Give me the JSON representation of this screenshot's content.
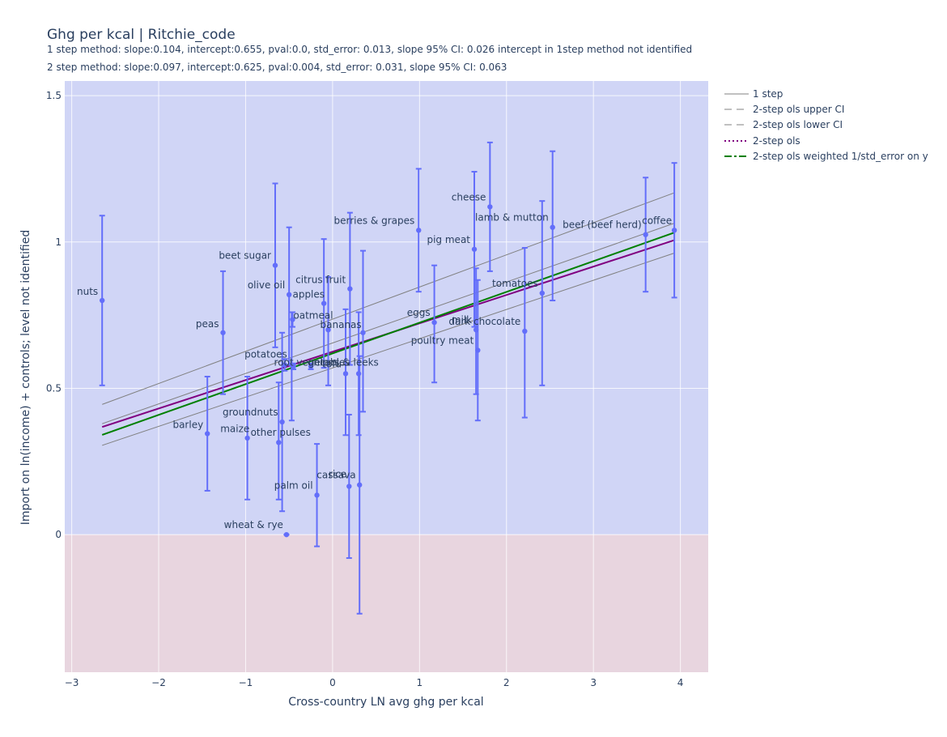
{
  "chart_data": {
    "type": "scatter",
    "title": "Ghg per kcal | Ritchie_code",
    "subtitle_lines": [
      "1 step method: slope:0.104, intercept:0.655, pval:0.0, std_error: 0.013, slope 95% CI: 0.026 intercept in 1step method not identified",
      "2 step method: slope:0.097, intercept:0.625, pval:0.004, std_error: 0.031, slope 95% CI: 0.063"
    ],
    "xlabel": "Cross-country LN avg ghg per kcal",
    "ylabel": "Import on ln(income) + controls; level not identified",
    "xlim": [
      -3.08,
      4.32
    ],
    "ylim": [
      -0.47,
      1.55
    ],
    "xticks": [
      -3,
      -2,
      -1,
      0,
      1,
      2,
      3,
      4
    ],
    "yticks": [
      0,
      0.5,
      1,
      1.5
    ],
    "ytick_labels": [
      "0",
      "0.5",
      "1",
      "1.5"
    ],
    "grid": true,
    "legend_position": "right-top",
    "background_regions": [
      {
        "y_from": 0,
        "y_to": 1.55,
        "color": "#d0d5f6"
      },
      {
        "y_from": -0.47,
        "y_to": 0,
        "color": "#e8d5df"
      }
    ],
    "colors": {
      "points": "#636efa",
      "one_step": "#808080",
      "ci": "#808080",
      "ols": "#800080",
      "weighted": "#008000"
    },
    "points": [
      {
        "label": "nuts",
        "x": -2.65,
        "y": 0.8,
        "lo": 0.51,
        "hi": 1.09,
        "anchor": "end",
        "dx": -5,
        "dy": -7
      },
      {
        "label": "peas",
        "x": -1.26,
        "y": 0.69,
        "lo": 0.48,
        "hi": 0.9,
        "anchor": "end",
        "dx": -5,
        "dy": -7
      },
      {
        "label": "barley",
        "x": -1.44,
        "y": 0.345,
        "lo": 0.15,
        "hi": 0.54,
        "anchor": "end",
        "dx": -5,
        "dy": -7
      },
      {
        "label": "other pulses",
        "x": -0.98,
        "y": 0.33,
        "lo": 0.12,
        "hi": 0.54,
        "anchor": "start",
        "dx": 4,
        "dy": -3
      },
      {
        "label": "maize",
        "x": -0.62,
        "y": 0.315,
        "lo": 0.12,
        "hi": 0.52,
        "anchor": "end",
        "dx": -36,
        "dy": -13
      },
      {
        "label": "groundnuts",
        "x": -0.58,
        "y": 0.385,
        "lo": 0.08,
        "hi": 0.69,
        "anchor": "end",
        "dx": -5,
        "dy": -8
      },
      {
        "label": "beet sugar",
        "x": -0.66,
        "y": 0.92,
        "lo": 0.64,
        "hi": 1.2,
        "anchor": "end",
        "dx": -5,
        "dy": -8
      },
      {
        "label": "olive oil",
        "x": -0.5,
        "y": 0.82,
        "lo": 0.58,
        "hi": 1.05,
        "anchor": "end",
        "dx": -5,
        "dy": -8
      },
      {
        "label": "apples",
        "x": -0.46,
        "y": 0.735,
        "lo": 0.71,
        "hi": 0.76,
        "anchor": "start",
        "dx": 0,
        "dy": -27
      },
      {
        "label": "oatmeal",
        "x": -0.47,
        "y": 0.58,
        "lo": 0.39,
        "hi": 0.76,
        "anchor": "start",
        "dx": 2,
        "dy": -57
      },
      {
        "label": "potatoes",
        "x": -0.55,
        "y": 0.58,
        "lo": 0.56,
        "hi": 0.6,
        "anchor": "end",
        "dx": 3,
        "dy": -9
      },
      {
        "label": "wheat & rye",
        "x": -0.53,
        "y": 0.0,
        "lo": 0.0,
        "hi": 0.0,
        "anchor": "end",
        "dx": -4,
        "dy": -8
      },
      {
        "label": "root vegetables",
        "x": -0.45,
        "y": 0.575,
        "lo": 0.565,
        "hi": 0.585,
        "anchor": "start",
        "dx": -24,
        "dy": -1
      },
      {
        "label": "onions & leeks",
        "x": -0.25,
        "y": 0.575,
        "lo": 0.565,
        "hi": 0.585,
        "anchor": "start",
        "dx": -4,
        "dy": -1
      },
      {
        "label": "citrus fruit",
        "x": -0.1,
        "y": 0.79,
        "lo": 0.57,
        "hi": 1.01,
        "anchor": "start",
        "dx": -35,
        "dy": -25
      },
      {
        "label": "bananas",
        "x": -0.05,
        "y": 0.7,
        "lo": 0.51,
        "hi": 0.88,
        "anchor": "start",
        "dx": -10,
        "dy": -2
      },
      {
        "label": "palm oil",
        "x": -0.18,
        "y": 0.135,
        "lo": -0.04,
        "hi": 0.31,
        "anchor": "end",
        "dx": -5,
        "dy": -8
      },
      {
        "label": "cassava",
        "x": 0.19,
        "y": 0.165,
        "lo": -0.08,
        "hi": 0.41,
        "anchor": "start",
        "dx": -40,
        "dy": -10
      },
      {
        "label": "rice",
        "x": 0.31,
        "y": 0.17,
        "lo": -0.27,
        "hi": 0.61,
        "anchor": "end",
        "dx": -16,
        "dy": -9
      },
      {
        "label": "tofu",
        "x": 0.15,
        "y": 0.55,
        "lo": 0.34,
        "hi": 0.77,
        "anchor": "end",
        "dx": -5,
        "dy": -8
      },
      {
        "label": "",
        "x": 0.2,
        "y": 0.84,
        "lo": 0.58,
        "hi": 1.1
      },
      {
        "label": "",
        "x": 0.3,
        "y": 0.55,
        "lo": 0.34,
        "hi": 0.76
      },
      {
        "label": "",
        "x": 0.35,
        "y": 0.69,
        "lo": 0.42,
        "hi": 0.97
      },
      {
        "label": "berries & grapes",
        "x": 0.99,
        "y": 1.04,
        "lo": 0.83,
        "hi": 1.25,
        "anchor": "end",
        "dx": -5,
        "dy": -8
      },
      {
        "label": "eggs",
        "x": 1.17,
        "y": 0.725,
        "lo": 0.52,
        "hi": 0.92,
        "anchor": "end",
        "dx": -5,
        "dy": -8
      },
      {
        "label": "pig meat",
        "x": 1.63,
        "y": 0.975,
        "lo": 0.71,
        "hi": 1.24,
        "anchor": "end",
        "dx": -5,
        "dy": -8
      },
      {
        "label": "milk",
        "x": 1.65,
        "y": 0.7,
        "lo": 0.48,
        "hi": 0.91,
        "anchor": "end",
        "dx": -5,
        "dy": -8
      },
      {
        "label": "poultry meat",
        "x": 1.67,
        "y": 0.63,
        "lo": 0.39,
        "hi": 0.87,
        "anchor": "end",
        "dx": -5,
        "dy": -8
      },
      {
        "label": "cheese",
        "x": 1.81,
        "y": 1.12,
        "lo": 0.9,
        "hi": 1.34,
        "anchor": "end",
        "dx": -5,
        "dy": -8
      },
      {
        "label": "dark chocolate",
        "x": 2.21,
        "y": 0.695,
        "lo": 0.4,
        "hi": 0.98,
        "anchor": "end",
        "dx": -5,
        "dy": -8
      },
      {
        "label": "tomatoes",
        "x": 2.41,
        "y": 0.825,
        "lo": 0.51,
        "hi": 1.14,
        "anchor": "end",
        "dx": -5,
        "dy": -8
      },
      {
        "label": "lamb & mutton",
        "x": 2.53,
        "y": 1.05,
        "lo": 0.8,
        "hi": 1.31,
        "anchor": "end",
        "dx": -5,
        "dy": -8
      },
      {
        "label": "beef (beef herd)",
        "x": 3.6,
        "y": 1.025,
        "lo": 0.83,
        "hi": 1.22,
        "anchor": "end",
        "dx": -5,
        "dy": -8
      },
      {
        "label": "coffee",
        "x": 3.93,
        "y": 1.04,
        "lo": 0.81,
        "hi": 1.27,
        "anchor": "end",
        "dx": -3,
        "dy": -8
      }
    ],
    "series": [
      {
        "name": "1 step",
        "style": "solid-thin",
        "color": "#808080",
        "x": [
          -2.65,
          3.93
        ],
        "y": [
          0.379,
          1.064
        ]
      },
      {
        "name": "2-step ols upper CI",
        "style": "longdash-thin",
        "color": "#808080",
        "x": [
          -2.65,
          3.93
        ],
        "y": [
          0.445,
          1.168
        ]
      },
      {
        "name": "2-step ols lower CI",
        "style": "longdash-thin",
        "color": "#808080",
        "x": [
          -2.65,
          3.93
        ],
        "y": [
          0.305,
          0.962
        ]
      },
      {
        "name": "2-step ols",
        "style": "dot",
        "color": "#800080",
        "x": [
          -2.65,
          3.93
        ],
        "y": [
          0.368,
          1.006
        ]
      },
      {
        "name": "2-step ols weighted 1/std_error on y",
        "style": "dashdot",
        "color": "#008000",
        "x": [
          -2.65,
          3.93
        ],
        "y": [
          0.341,
          1.032
        ]
      }
    ]
  }
}
